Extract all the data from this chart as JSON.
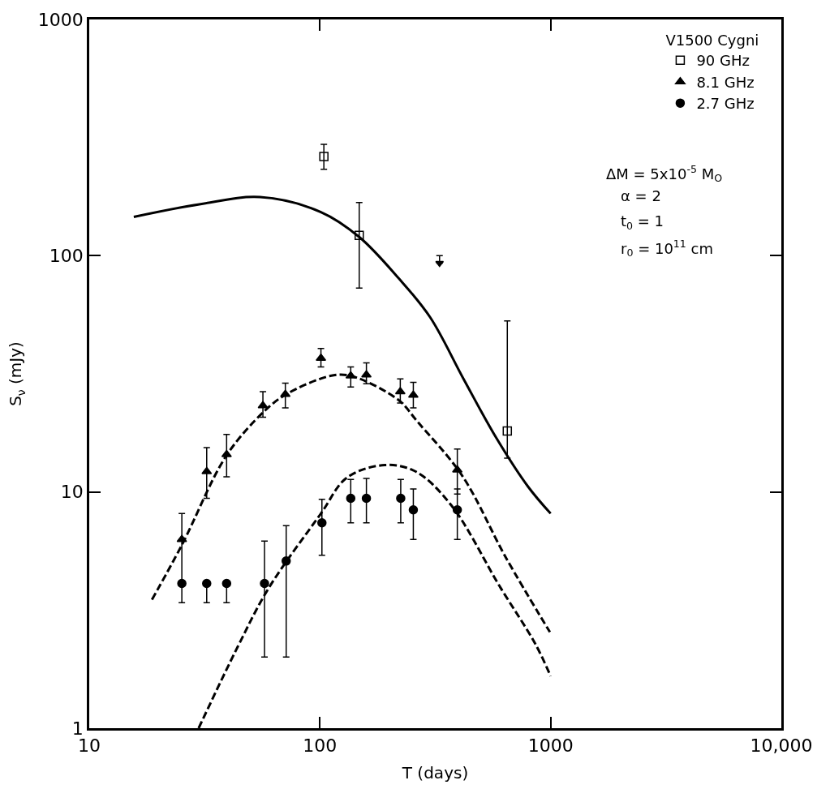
{
  "chart_data": {
    "type": "scatter",
    "xlabel": "T (days)",
    "ylabel": "S$_{ν}$ (mJy)",
    "legend_title": "V1500 Cygni",
    "log": "xy",
    "legend": "top right",
    "xlim": [
      10,
      10000
    ],
    "xticks": [
      10,
      100,
      1000,
      {
        "value": 10000,
        "label": "10,000"
      }
    ],
    "ylim": [
      1,
      1000
    ],
    "yticks": [
      1,
      10,
      100,
      1000
    ],
    "annotations": [
      "ΔM = 5x10$^{-5}$ M$_{O}$",
      "α = 2",
      "t$_{0}$ = 1",
      "r$_{0}$ = 10$^{11}$ cm"
    ],
    "series": [
      {
        "name": "90 GHz",
        "marker": "square",
        "color": "#000000",
        "x": [
          104,
          148,
          649
        ],
        "values": [
          263,
          122,
          18.1
        ],
        "errors": [
          [
            232,
            296
          ],
          [
            73,
            168
          ],
          [
            13.9,
            53
          ]
        ]
      },
      {
        "name": "8.1 GHz",
        "marker": "triangle",
        "color": "#000000",
        "x": [
          25.2,
          32.3,
          39.4,
          56.6,
          70.8,
          101,
          136,
          159,
          223,
          254,
          394
        ],
        "values": [
          6.3,
          12.2,
          14.4,
          23.2,
          25.9,
          36.8,
          31.0,
          31.3,
          26.6,
          25.7,
          12.4
        ],
        "errors": [
          [
            4.2,
            8.1
          ],
          [
            9.4,
            15.4
          ],
          [
            11.6,
            17.5
          ],
          [
            20.7,
            26.6
          ],
          [
            22.7,
            28.9
          ],
          [
            33.8,
            40.5
          ],
          [
            27.8,
            33.8
          ],
          [
            28.7,
            35.2
          ],
          [
            23.8,
            30.1
          ],
          [
            22.7,
            29.1
          ],
          [
            9.8,
            15.2
          ]
        ]
      },
      {
        "name": "2.7 GHz",
        "marker": "circle",
        "color": "#000000",
        "x": [
          25.2,
          32.3,
          39.4,
          57.5,
          71.4,
          102,
          136,
          159,
          224,
          254,
          394
        ],
        "values": [
          4.1,
          4.1,
          4.1,
          4.1,
          5.1,
          7.4,
          9.4,
          9.4,
          9.4,
          8.4,
          8.4
        ],
        "errors": [
          [
            3.4,
            4.1
          ],
          [
            3.4,
            4.1
          ],
          [
            3.4,
            4.1
          ],
          [
            2,
            6.2
          ],
          [
            2,
            7.2
          ],
          [
            5.4,
            9.3
          ],
          [
            7.4,
            11.3
          ],
          [
            7.4,
            11.4
          ],
          [
            7.4,
            11.3
          ],
          [
            6.3,
            10.3
          ],
          [
            6.3,
            10.3
          ]
        ]
      },
      {
        "marker": "triangle",
        "color": "#000000",
        "x": [
          330
        ],
        "values": [
          93
        ],
        "errors": [
          [
            93,
            100
          ]
        ]
      },
      {
        "type": "line",
        "line_style": "solid",
        "color": "#000000",
        "x": [
          15.6,
          30,
          55,
          101,
          148,
          220,
          300,
          420,
          580,
          800,
          1000
        ],
        "values": [
          146,
          165,
          177,
          153,
          120,
          80,
          55,
          30,
          17,
          10.5,
          8.1
        ]
      },
      {
        "type": "line",
        "line_style": "dashed",
        "color": "#000000",
        "x": [
          18.7,
          25.2,
          39.4,
          57.5,
          71.4,
          111,
          136,
          219,
          264,
          414,
          638,
          993
        ],
        "values": [
          3.5,
          5.96,
          14.3,
          22,
          25.9,
          31,
          31,
          24.5,
          19.9,
          11.7,
          5.3,
          2.55
        ]
      },
      {
        "type": "line",
        "line_style": "dashed",
        "color": "#000000",
        "x": [
          29.8,
          44.2,
          59.8,
          101,
          131,
          191,
          260,
          372,
          600,
          859,
          1000
        ],
        "values": [
          1,
          2.23,
          3.9,
          8.1,
          11.5,
          13.0,
          12.2,
          8.75,
          4.0,
          2.27,
          1.66
        ]
      }
    ]
  }
}
